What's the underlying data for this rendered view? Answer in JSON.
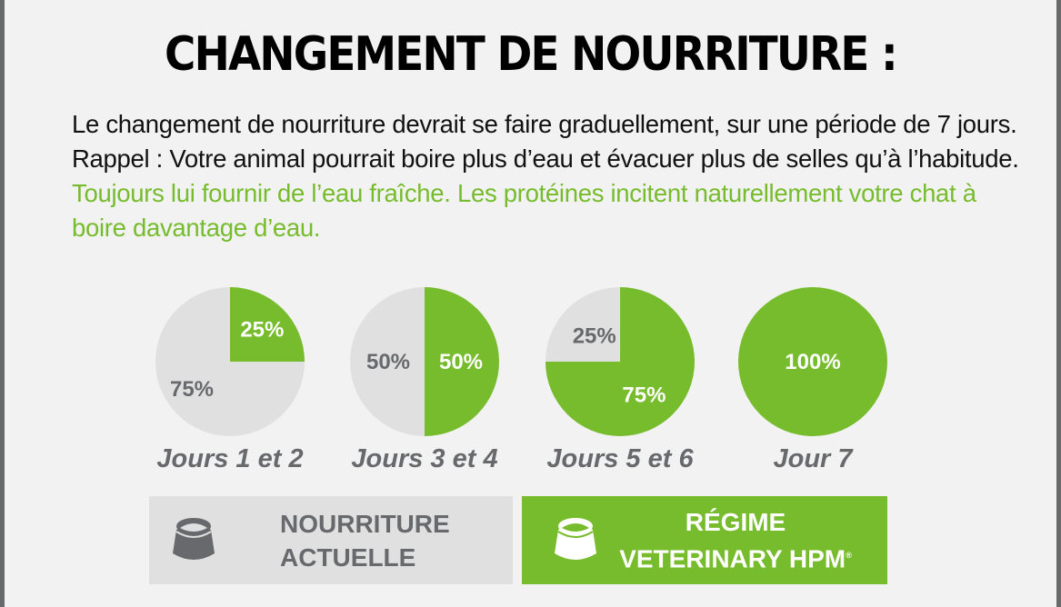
{
  "title": "CHANGEMENT DE NOURRITURE :",
  "intro": {
    "text": "Le changement de nourriture devrait se faire graduellement, sur une période de 7 jours. Rappel : Votre animal pourrait boire plus d’eau et évacuer plus de selles qu’à l’habitude. ",
    "highlight": "Toujours lui fournir de l’eau fraîche. Les protéines incitent naturellement votre chat à boire davantage d’eau."
  },
  "colors": {
    "green": "#76bc2c",
    "gray": "#e0e0e0",
    "dark_gray": "#68696c",
    "background": "#f2f2f2"
  },
  "chart_data": {
    "type": "pie",
    "series_names": [
      "NOURRITURE ACTUELLE",
      "RÉGIME VETERINARY HPM"
    ],
    "charts": [
      {
        "label": "Jours 1 et 2",
        "current": 75,
        "new": 25,
        "current_label": "75%",
        "new_label": "25%"
      },
      {
        "label": "Jours 3 et 4",
        "current": 50,
        "new": 50,
        "current_label": "50%",
        "new_label": "50%"
      },
      {
        "label": "Jours 5 et 6",
        "current": 25,
        "new": 75,
        "current_label": "25%",
        "new_label": "75%"
      },
      {
        "label": "Jour 7",
        "current": 0,
        "new": 100,
        "current_label": "",
        "new_label": "100%"
      }
    ]
  },
  "legend": {
    "current": {
      "line1": "NOURRITURE",
      "line2": "ACTUELLE",
      "icon": "bowl-icon"
    },
    "new": {
      "line1": "RÉGIME",
      "line2": "VETERINARY HPM",
      "mark": "®",
      "icon": "bowl-icon"
    }
  }
}
